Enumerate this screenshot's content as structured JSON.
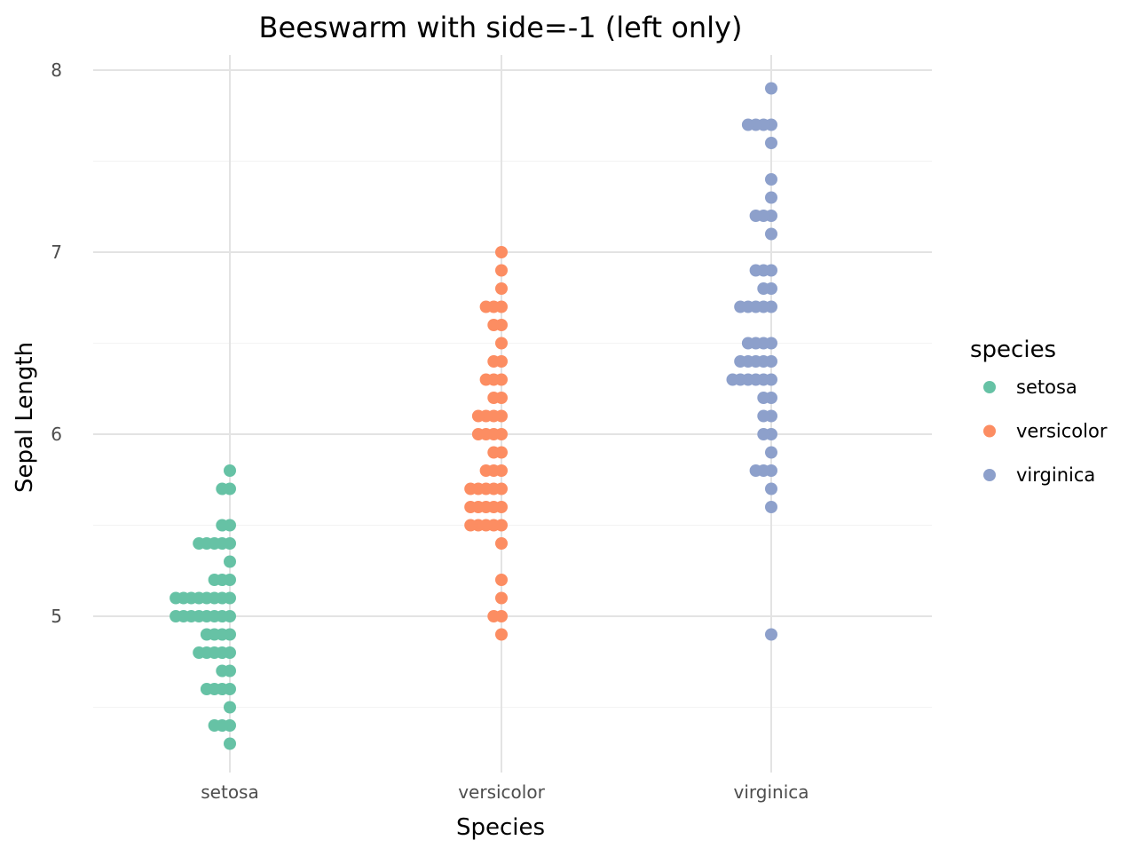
{
  "chart_data": {
    "type": "scatter",
    "subtype": "beeswarm",
    "title": "Beeswarm with side=-1 (left only)",
    "xlabel": "Species",
    "ylabel": "Sepal Length",
    "categories": [
      "setosa",
      "versicolor",
      "virginica"
    ],
    "yticks": [
      5,
      6,
      7,
      8
    ],
    "ylim": [
      4.14,
      8.08
    ],
    "grid": true,
    "legend": {
      "title": "species",
      "placement": "right"
    },
    "series": [
      {
        "name": "setosa",
        "color": "#66c2a5",
        "values": [
          5.8,
          5.7,
          5.7,
          5.5,
          5.5,
          5.4,
          5.4,
          5.4,
          5.4,
          5.4,
          5.3,
          5.2,
          5.2,
          5.2,
          5.1,
          5.1,
          5.1,
          5.1,
          5.1,
          5.1,
          5.1,
          5.1,
          5.0,
          5.0,
          5.0,
          5.0,
          5.0,
          5.0,
          5.0,
          5.0,
          4.9,
          4.9,
          4.9,
          4.9,
          4.8,
          4.8,
          4.8,
          4.8,
          4.8,
          4.7,
          4.7,
          4.6,
          4.6,
          4.6,
          4.6,
          4.5,
          4.4,
          4.4,
          4.4,
          4.3
        ]
      },
      {
        "name": "versicolor",
        "color": "#fc8d62",
        "values": [
          7.0,
          6.9,
          6.8,
          6.7,
          6.7,
          6.7,
          6.6,
          6.6,
          6.5,
          6.4,
          6.4,
          6.3,
          6.3,
          6.3,
          6.2,
          6.2,
          6.1,
          6.1,
          6.1,
          6.1,
          6.0,
          6.0,
          6.0,
          6.0,
          5.9,
          5.9,
          5.8,
          5.8,
          5.8,
          5.7,
          5.7,
          5.7,
          5.7,
          5.7,
          5.6,
          5.6,
          5.6,
          5.6,
          5.6,
          5.5,
          5.5,
          5.5,
          5.5,
          5.5,
          5.4,
          5.2,
          5.1,
          5.0,
          5.0,
          4.9
        ]
      },
      {
        "name": "virginica",
        "color": "#8da0cb",
        "values": [
          7.9,
          7.7,
          7.7,
          7.7,
          7.7,
          7.6,
          7.4,
          7.3,
          7.2,
          7.2,
          7.2,
          7.1,
          6.9,
          6.9,
          6.9,
          6.8,
          6.8,
          6.7,
          6.7,
          6.7,
          6.7,
          6.7,
          6.5,
          6.5,
          6.5,
          6.5,
          6.4,
          6.4,
          6.4,
          6.4,
          6.4,
          6.3,
          6.3,
          6.3,
          6.3,
          6.3,
          6.3,
          6.2,
          6.2,
          6.1,
          6.1,
          6.0,
          6.0,
          5.9,
          5.8,
          5.8,
          5.8,
          5.7,
          5.6,
          4.9
        ]
      }
    ]
  }
}
